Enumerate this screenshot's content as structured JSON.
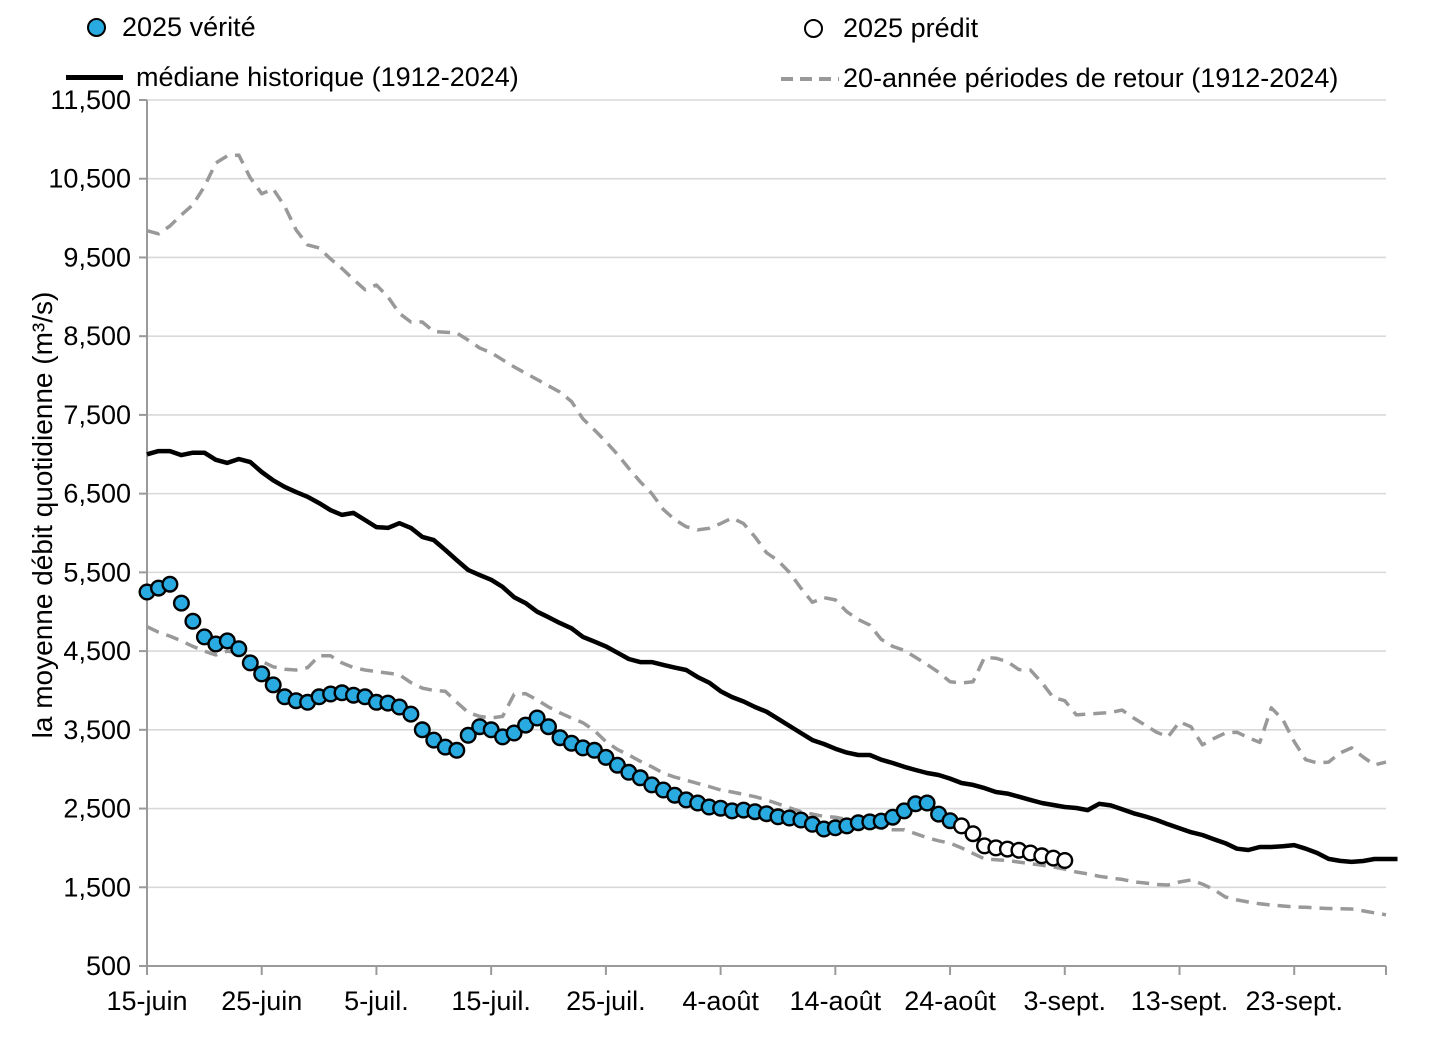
{
  "legend": {
    "verite_label": "2025 vérité",
    "predit_label": "2025 prédit",
    "mediane_label": "médiane historique (1912-2024)",
    "retour_label": "20-année périodes de retour (1912-2024)"
  },
  "y_axis": {
    "title": "la moyenne débit quotidienne (m³/s)",
    "min": 500,
    "max": 11500,
    "tick_step": 1000,
    "tick_labels": [
      "500",
      "1,500",
      "2,500",
      "3,500",
      "4,500",
      "5,500",
      "6,500",
      "7,500",
      "8,500",
      "9,500",
      "10,500",
      "11,500"
    ]
  },
  "x_axis": {
    "tick_labels": [
      "15-juin",
      "25-juin",
      "5-juil.",
      "15-juil.",
      "25-juil.",
      "4-août",
      "14-août",
      "24-août",
      "3-sept.",
      "13-sept.",
      "23-sept."
    ],
    "tick_days": [
      0,
      10,
      20,
      30,
      40,
      50,
      60,
      70,
      80,
      90,
      100
    ],
    "days_total": 108
  },
  "colors": {
    "verite_fill": "#29abe2",
    "predit_fill": "#ffffff",
    "mediane": "#000000",
    "retour": "#999999",
    "grid": "#d9d9d9",
    "axis": "#9a9a9a",
    "text": "#000000"
  },
  "chart_data": {
    "type": "line",
    "x_start_label": "15-juin",
    "x_is_daily": true,
    "ylim": [
      500,
      11500
    ],
    "grid": "horizontal",
    "legend_position": "top",
    "series": [
      {
        "name": "2025 vérité",
        "kind": "scatter",
        "marker": "filled-circle",
        "color": "#29abe2",
        "day_start": 0,
        "values": [
          5250,
          5300,
          5350,
          5110,
          4880,
          4680,
          4590,
          4630,
          4530,
          4350,
          4210,
          4070,
          3920,
          3870,
          3850,
          3920,
          3955,
          3970,
          3940,
          3920,
          3850,
          3840,
          3790,
          3700,
          3500,
          3370,
          3280,
          3240,
          3430,
          3540,
          3500,
          3410,
          3460,
          3560,
          3650,
          3540,
          3400,
          3330,
          3270,
          3240,
          3150,
          3050,
          2960,
          2890,
          2800,
          2735,
          2670,
          2610,
          2570,
          2520,
          2505,
          2470,
          2480,
          2460,
          2435,
          2395,
          2380,
          2355,
          2300,
          2240,
          2255,
          2280,
          2320,
          2330,
          2340,
          2390,
          2470,
          2560,
          2570,
          2430,
          2345
        ]
      },
      {
        "name": "2025 prédit",
        "kind": "scatter",
        "marker": "open-circle",
        "color": "#ffffff",
        "day_start": 71,
        "values": [
          2280,
          2180,
          2025,
          2000,
          1985,
          1970,
          1935,
          1900,
          1870,
          1840
        ]
      },
      {
        "name": "médiane historique (1912-2024)",
        "kind": "line",
        "style": "solid",
        "color": "#000000",
        "day_start": 0,
        "values": [
          7000,
          7040,
          7040,
          6990,
          7020,
          7020,
          6930,
          6890,
          6940,
          6900,
          6775,
          6670,
          6585,
          6520,
          6460,
          6380,
          6290,
          6230,
          6255,
          6165,
          6075,
          6065,
          6125,
          6065,
          5950,
          5910,
          5785,
          5655,
          5530,
          5465,
          5405,
          5315,
          5185,
          5110,
          5000,
          4930,
          4855,
          4790,
          4680,
          4620,
          4560,
          4480,
          4400,
          4360,
          4360,
          4325,
          4290,
          4260,
          4170,
          4100,
          3990,
          3915,
          3860,
          3790,
          3730,
          3640,
          3550,
          3460,
          3370,
          3320,
          3260,
          3210,
          3180,
          3180,
          3120,
          3078,
          3030,
          2990,
          2952,
          2926,
          2880,
          2825,
          2800,
          2760,
          2710,
          2690,
          2650,
          2610,
          2571,
          2545,
          2520,
          2507,
          2480,
          2560,
          2540,
          2490,
          2440,
          2400,
          2355,
          2300,
          2250,
          2200,
          2164,
          2110,
          2060,
          1990,
          1973,
          2011,
          2011,
          2020,
          2036,
          1990,
          1935,
          1860,
          1835,
          1822,
          1834,
          1859,
          1859,
          1859
        ]
      },
      {
        "name": "20-année périodes de retour (1912-2024)",
        "component": "upper",
        "kind": "line",
        "style": "dashed",
        "color": "#999999",
        "day_start": 0,
        "values": [
          9840,
          9800,
          9900,
          10040,
          10170,
          10400,
          10700,
          10790,
          10800,
          10510,
          10310,
          10370,
          10150,
          9850,
          9660,
          9620,
          9480,
          9360,
          9220,
          9090,
          9150,
          9000,
          8790,
          8680,
          8680,
          8560,
          8550,
          8540,
          8450,
          8350,
          8290,
          8200,
          8110,
          8030,
          7950,
          7870,
          7790,
          7670,
          7450,
          7310,
          7160,
          7000,
          6820,
          6650,
          6500,
          6300,
          6170,
          6080,
          6040,
          6060,
          6120,
          6190,
          6120,
          5950,
          5750,
          5650,
          5500,
          5300,
          5120,
          5180,
          5150,
          5000,
          4900,
          4830,
          4650,
          4560,
          4510,
          4420,
          4330,
          4230,
          4110,
          4095,
          4110,
          4420,
          4410,
          4365,
          4265,
          4260,
          4100,
          3910,
          3870,
          3690,
          3700,
          3710,
          3720,
          3750,
          3650,
          3560,
          3470,
          3410,
          3600,
          3540,
          3310,
          3390,
          3460,
          3470,
          3400,
          3340,
          3780,
          3630,
          3350,
          3120,
          3080,
          3090,
          3205,
          3270,
          3155,
          3055,
          3090
        ]
      },
      {
        "name": "20-année périodes de retour (1912-2024)",
        "component": "lower",
        "kind": "line",
        "style": "dashed",
        "color": "#999999",
        "day_start": 0,
        "values": [
          4810,
          4740,
          4690,
          4630,
          4560,
          4500,
          4450,
          4500,
          4480,
          4420,
          4370,
          4300,
          4270,
          4260,
          4290,
          4440,
          4440,
          4350,
          4290,
          4260,
          4240,
          4220,
          4200,
          4100,
          4030,
          4000,
          3990,
          3850,
          3720,
          3670,
          3650,
          3670,
          3950,
          3960,
          3880,
          3790,
          3715,
          3650,
          3590,
          3490,
          3350,
          3250,
          3180,
          3100,
          3030,
          2950,
          2900,
          2860,
          2820,
          2780,
          2735,
          2710,
          2680,
          2650,
          2610,
          2560,
          2510,
          2460,
          2430,
          2400,
          2390,
          2360,
          2320,
          2280,
          2250,
          2230,
          2230,
          2180,
          2130,
          2090,
          2060,
          2000,
          1930,
          1860,
          1850,
          1840,
          1820,
          1800,
          1780,
          1760,
          1730,
          1694,
          1670,
          1640,
          1618,
          1600,
          1570,
          1554,
          1535,
          1529,
          1567,
          1592,
          1540,
          1470,
          1377,
          1340,
          1313,
          1290,
          1275,
          1262,
          1250,
          1245,
          1237,
          1230,
          1226,
          1224,
          1200,
          1175,
          1150
        ]
      }
    ]
  }
}
